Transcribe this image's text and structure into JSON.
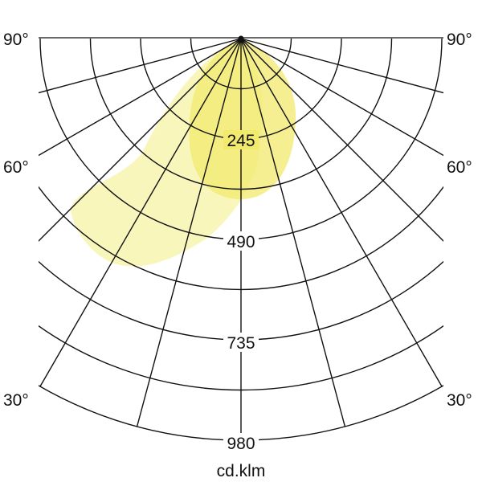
{
  "diagram": {
    "type": "polar light distribution",
    "unit_label": "cd.klm",
    "angle_labels_left": [
      "90°",
      "60°",
      "30°"
    ],
    "angle_labels_right": [
      "90°",
      "60°",
      "30°"
    ],
    "radial_labels": [
      "245",
      "490",
      "735",
      "980"
    ],
    "colors": {
      "grid": "#111111",
      "beam_light": "#f7f3a6",
      "beam_dark": "#f1ea6e"
    }
  }
}
